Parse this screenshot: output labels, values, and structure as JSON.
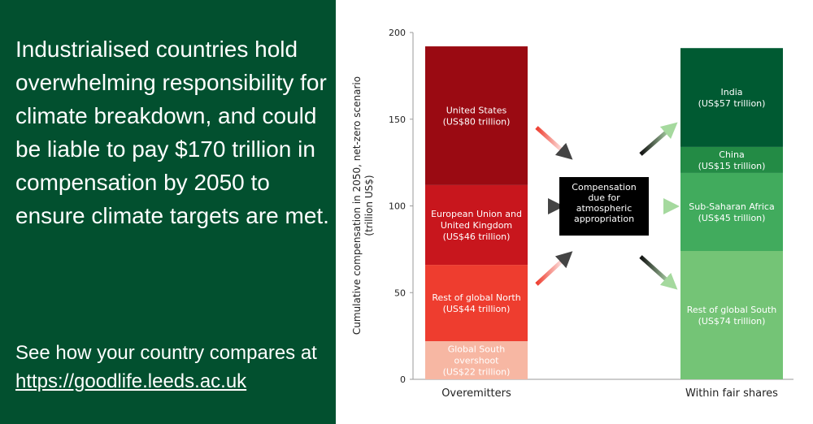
{
  "panel": {
    "headline": "Industrialised countries hold overwhelming responsibility for climate breakdown, and could be liable to pay $170 trillion in compensation by 2050 to ensure climate targets are met.",
    "cta_prefix": "See how your country compares at ",
    "cta_link": "https://goodlife.leeds.ac.uk"
  },
  "chart_data": {
    "type": "bar",
    "stacked": true,
    "ylabel": [
      "Cumulative compensation in 2050, net-zero scenario",
      "(trillion US$)"
    ],
    "ylim": [
      0,
      200
    ],
    "yticks": [
      0,
      50,
      100,
      150,
      200
    ],
    "categories": [
      "Overemitters",
      "Within fair shares"
    ],
    "stacks": [
      {
        "category": "Overemitters",
        "segments": [
          {
            "label": [
              "Global South",
              "overshoot",
              "(US$22 trillion)"
            ],
            "value": 22,
            "color": "#f7b7a3",
            "label_color": "#fde8e0"
          },
          {
            "label": [
              "Rest of global North",
              "(US$44 trillion)"
            ],
            "value": 44,
            "color": "#ee3d2f"
          },
          {
            "label": [
              "European Union and",
              "United Kingdom",
              "(US$46 trillion)"
            ],
            "value": 46,
            "color": "#c8161d"
          },
          {
            "label": [
              "United States",
              "(US$80 trillion)"
            ],
            "value": 80,
            "color": "#9a0a12"
          }
        ]
      },
      {
        "category": "Within fair shares",
        "segments": [
          {
            "label": [
              "Rest of global South",
              "(US$74 trillion)"
            ],
            "value": 74,
            "color": "#74c476"
          },
          {
            "label": [
              "Sub-Saharan Africa",
              "(US$45 trillion)"
            ],
            "value": 45,
            "color": "#41ab5d"
          },
          {
            "label": [
              "China",
              "(US$15 trillion)"
            ],
            "value": 15,
            "color": "#238b45"
          },
          {
            "label": [
              "India",
              "(US$57 trillion)"
            ],
            "value": 57,
            "color": "#005a32"
          }
        ]
      }
    ],
    "center_box": [
      "Compensation",
      "due for",
      "atmospheric",
      "appropriation"
    ]
  }
}
